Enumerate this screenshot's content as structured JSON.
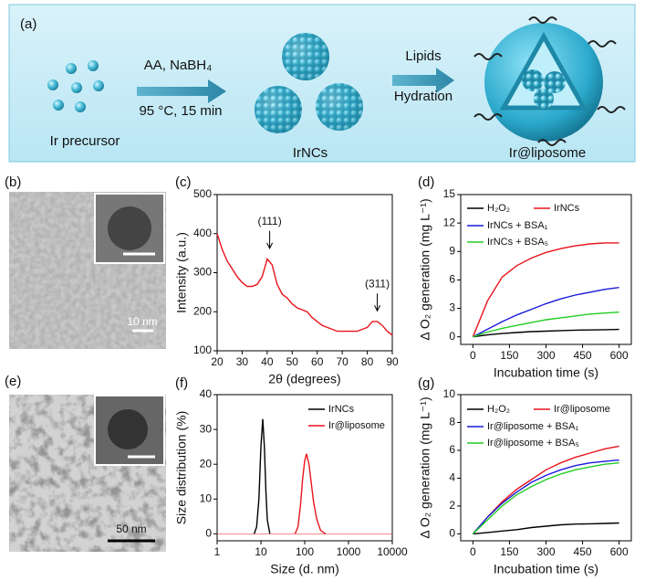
{
  "panels": [
    "(a)",
    "(b)",
    "(c)",
    "(d)",
    "(e)",
    "(f)",
    "(g)"
  ],
  "schematic": {
    "step1": [
      "AA, NaBH₄",
      "95 °C, 15 min"
    ],
    "step2": [
      "Lipids",
      "Hydration"
    ],
    "labels": [
      "Ir precursor",
      "IrNCs",
      "Ir@liposome"
    ]
  },
  "images": [
    {
      "scale": "10 nm"
    },
    {
      "scale": "50 nm"
    }
  ],
  "chart_data": [
    {
      "type": "line",
      "xlabel": "2θ (degrees)",
      "ylabel": "Intensity (a.u.)",
      "annotations": [
        "(111)",
        "(311)"
      ],
      "x": [
        20,
        22,
        24,
        26,
        28,
        30,
        32,
        34,
        36,
        38,
        40,
        42,
        44,
        46,
        48,
        50,
        52,
        54,
        56,
        58,
        60,
        62,
        64,
        66,
        68,
        70,
        72,
        74,
        76,
        78,
        80,
        82,
        84,
        86,
        88,
        90
      ],
      "series": [
        {
          "color": "#e8141b",
          "values": [
            400,
            360,
            330,
            310,
            290,
            275,
            265,
            265,
            270,
            290,
            335,
            320,
            270,
            245,
            235,
            220,
            210,
            205,
            200,
            185,
            175,
            165,
            160,
            155,
            150,
            150,
            150,
            150,
            150,
            155,
            160,
            175,
            175,
            165,
            150,
            140
          ]
        }
      ],
      "xlim": [
        20,
        90
      ],
      "xticks": [
        20,
        30,
        40,
        50,
        60,
        70,
        80,
        90
      ],
      "ylim": [
        100,
        500
      ],
      "yticks": [
        100,
        200,
        300,
        400,
        500
      ]
    },
    {
      "type": "line",
      "xlabel": "Incubation time (s)",
      "ylabel": "Δ O₂ generation (mg L⁻¹)",
      "x": [
        0,
        60,
        120,
        180,
        240,
        300,
        360,
        420,
        480,
        540,
        600
      ],
      "series": [
        {
          "name": "H₂O₂",
          "color": "#000000",
          "values": [
            0,
            0.2,
            0.35,
            0.45,
            0.55,
            0.6,
            0.65,
            0.7,
            0.72,
            0.75,
            0.78
          ]
        },
        {
          "name": "IrNCs",
          "color": "#e8141b",
          "values": [
            0,
            3.8,
            6.3,
            7.5,
            8.3,
            8.9,
            9.3,
            9.6,
            9.8,
            9.9,
            9.9
          ]
        },
        {
          "name": "IrNCs + BSA₁",
          "color": "#1a1adb",
          "values": [
            0,
            0.8,
            1.6,
            2.3,
            2.9,
            3.5,
            4,
            4.4,
            4.7,
            5,
            5.2
          ]
        },
        {
          "name": "IrNCs + BSA₅",
          "color": "#22cc22",
          "values": [
            0,
            0.5,
            0.9,
            1.2,
            1.5,
            1.8,
            2,
            2.2,
            2.4,
            2.5,
            2.6
          ]
        }
      ],
      "xlim": [
        -50,
        650
      ],
      "xticks": [
        0,
        150,
        300,
        450,
        600
      ],
      "ylim": [
        -0.8,
        15
      ],
      "yticks": [
        0,
        3,
        6,
        9,
        12,
        15
      ]
    },
    {
      "type": "line",
      "xlog": true,
      "xlabel": "Size (d. nm)",
      "ylabel": "Size distribution (%)",
      "series": [
        {
          "name": "IrNCs",
          "color": "#000000",
          "x": [
            7,
            8,
            9,
            10,
            11,
            12,
            13,
            14,
            16
          ],
          "values": [
            0,
            2,
            10,
            25,
            33,
            25,
            12,
            4,
            0
          ]
        },
        {
          "name": "Ir@liposome",
          "color": "#e8141b",
          "x": [
            60,
            70,
            80,
            90,
            100,
            110,
            125,
            140,
            160,
            190,
            230,
            300
          ],
          "values": [
            0,
            2,
            8,
            16,
            21,
            23,
            20,
            15,
            9,
            4,
            1,
            0
          ]
        }
      ],
      "xlim": [
        1,
        10000
      ],
      "xticks": [
        1,
        10,
        100,
        1000,
        10000
      ],
      "ylim": [
        -2,
        40
      ],
      "yticks": [
        0,
        10,
        20,
        30,
        40
      ]
    },
    {
      "type": "line",
      "xlabel": "Incubation time (s)",
      "ylabel": "Δ O₂ generation (mg L⁻¹)",
      "x": [
        0,
        60,
        120,
        180,
        240,
        300,
        360,
        420,
        480,
        540,
        600
      ],
      "series": [
        {
          "name": "H₂O₂",
          "color": "#000000",
          "values": [
            0,
            0.1,
            0.2,
            0.3,
            0.45,
            0.55,
            0.65,
            0.7,
            0.72,
            0.75,
            0.78
          ]
        },
        {
          "name": "Ir@liposome",
          "color": "#e8141b",
          "values": [
            0,
            1.2,
            2.3,
            3.2,
            3.9,
            4.6,
            5.1,
            5.5,
            5.8,
            6.1,
            6.3
          ]
        },
        {
          "name": "Ir@liposome + BSA₁",
          "color": "#1a1adb",
          "values": [
            0,
            1.2,
            2.2,
            3,
            3.7,
            4.2,
            4.6,
            4.9,
            5.1,
            5.2,
            5.3
          ]
        },
        {
          "name": "Ir@liposome + BSA₅",
          "color": "#22cc22",
          "values": [
            0,
            1,
            2,
            2.8,
            3.4,
            3.9,
            4.3,
            4.6,
            4.8,
            5,
            5.1
          ]
        }
      ],
      "xlim": [
        -50,
        650
      ],
      "xticks": [
        0,
        150,
        300,
        450,
        600
      ],
      "ylim": [
        -0.5,
        10
      ],
      "yticks": [
        0,
        2,
        4,
        6,
        8,
        10
      ]
    }
  ]
}
